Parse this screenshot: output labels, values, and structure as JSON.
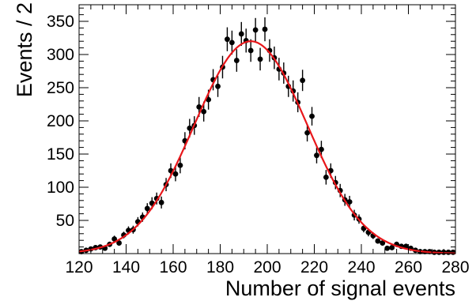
{
  "chart_data": {
    "type": "scatter",
    "title": "",
    "xlabel": "Number of signal events",
    "ylabel": "Events / 2",
    "xlim": [
      120,
      280
    ],
    "ylim": [
      0,
      375
    ],
    "x_ticks": [
      120,
      140,
      160,
      180,
      200,
      220,
      240,
      260,
      280
    ],
    "y_ticks": [
      50,
      100,
      150,
      200,
      250,
      300,
      350
    ],
    "grid": false,
    "legend": "none",
    "colors": {
      "points": "#000000",
      "fit": "#e8161a",
      "axes": "#000000"
    },
    "series": [
      {
        "kind": "points-with-errors",
        "x": [
          121,
          123,
          125,
          127,
          129,
          131,
          133,
          135,
          137,
          139,
          141,
          143,
          145,
          147,
          149,
          151,
          153,
          155,
          157,
          159,
          161,
          163,
          165,
          167,
          169,
          171,
          173,
          175,
          177,
          179,
          181,
          183,
          185,
          187,
          189,
          191,
          193,
          195,
          197,
          199,
          201,
          203,
          205,
          207,
          209,
          211,
          213,
          215,
          217,
          219,
          221,
          223,
          225,
          227,
          229,
          231,
          233,
          235,
          237,
          239,
          241,
          243,
          245,
          247,
          249,
          251,
          253,
          255,
          257,
          259,
          261,
          263,
          265,
          267,
          269,
          271,
          273,
          275,
          277,
          279
        ],
        "y": [
          3,
          5,
          7,
          9,
          10,
          8,
          14,
          22,
          16,
          28,
          35,
          36,
          48,
          55,
          68,
          76,
          83,
          77,
          104,
          125,
          120,
          133,
          170,
          189,
          193,
          221,
          214,
          232,
          262,
          252,
          281,
          323,
          318,
          291,
          331,
          321,
          306,
          337,
          293,
          338,
          306,
          295,
          278,
          272,
          252,
          245,
          228,
          261,
          182,
          207,
          148,
          157,
          115,
          125,
          107,
          95,
          81,
          78,
          58,
          52,
          38,
          32,
          27,
          19,
          16,
          8,
          9,
          14,
          11,
          11,
          8,
          5,
          3,
          3,
          3,
          2,
          2,
          2,
          2,
          2
        ],
        "errors": [
          2,
          2,
          3,
          3,
          3,
          3,
          4,
          5,
          4,
          5,
          6,
          6,
          7,
          7,
          8,
          9,
          9,
          9,
          10,
          11,
          11,
          12,
          13,
          14,
          14,
          15,
          15,
          15,
          16,
          16,
          17,
          18,
          18,
          17,
          18,
          18,
          17,
          18,
          17,
          18,
          17,
          17,
          17,
          16,
          16,
          16,
          15,
          16,
          13,
          14,
          12,
          13,
          11,
          11,
          10,
          10,
          9,
          9,
          8,
          7,
          6,
          6,
          5,
          4,
          4,
          3,
          3,
          4,
          3,
          3,
          3,
          2,
          2,
          2,
          2,
          1,
          1,
          1,
          1,
          1
        ]
      },
      {
        "kind": "fit-curve",
        "model": "gaussian",
        "amplitude": 320,
        "mean": 193,
        "sigma": 24
      }
    ]
  }
}
